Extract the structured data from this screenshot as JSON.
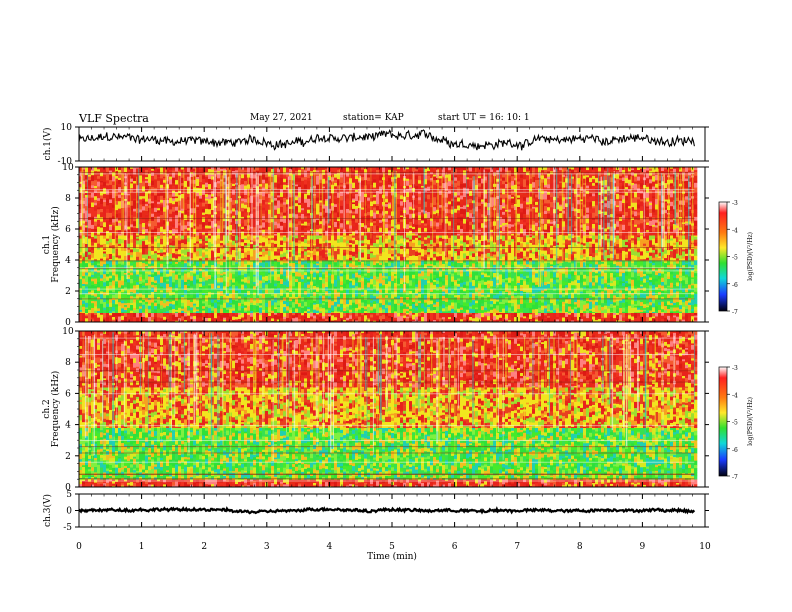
{
  "header": {
    "title": "VLF Spectra",
    "date": "May 27, 2021",
    "station": "station= KAP",
    "start": "start  UT =   16: 10: 1"
  },
  "colors": {
    "spectrogram_high": "#e8231c",
    "spectrogram_mid": "#f2e51e",
    "spectrogram_low": "#2fe03a",
    "waveform": "#000000"
  },
  "chart_data": [
    {
      "type": "line",
      "name": "ch1-waveform",
      "ylabel": "ch.1(V)",
      "ylim": [
        -10,
        10
      ],
      "ytick_labels": [
        "10",
        "-10"
      ],
      "xlim": [
        0,
        10
      ],
      "x_end": 9.83,
      "mean": 2,
      "amplitude": 4,
      "grid": false
    },
    {
      "type": "heatmap",
      "name": "ch1-spectrogram",
      "ylabel": "ch.1\nFrequency  (kHz)",
      "ylim": [
        0,
        10
      ],
      "yticks": [
        0,
        2,
        4,
        6,
        8,
        10
      ],
      "xlim": [
        0,
        10
      ],
      "x_end": 9.83,
      "colorbar": {
        "label": "log(PSD)(V²/Hz)",
        "range": [
          -7,
          -3
        ],
        "ticks": [
          "-3",
          "-4",
          "-5",
          "-6",
          "-7"
        ],
        "colormap": "rainbow (black-blue-cyan-green-yellow-red-white)"
      },
      "bands_kHz": [
        {
          "range": [
            0,
            0.6
          ],
          "level": "high"
        },
        {
          "range": [
            0.6,
            4.0
          ],
          "level": "low"
        },
        {
          "range": [
            4.0,
            5.6
          ],
          "level": "mid-high"
        },
        {
          "range": [
            5.6,
            10
          ],
          "level": "high"
        }
      ]
    },
    {
      "type": "heatmap",
      "name": "ch2-spectrogram",
      "ylabel": "ch.2\nFrequency  (kHz)",
      "ylim": [
        0,
        10
      ],
      "yticks": [
        0,
        2,
        4,
        6,
        8,
        10
      ],
      "xlim": [
        0,
        10
      ],
      "x_end": 9.83,
      "colorbar": {
        "label": "log(PSD)(V²/Hz)",
        "range": [
          -7,
          -3
        ],
        "ticks": [
          "-3",
          "-4",
          "-5",
          "-6",
          "-7"
        ],
        "colormap": "rainbow (black-blue-cyan-green-yellow-red-white)"
      },
      "bands_kHz": [
        {
          "range": [
            0,
            0.5
          ],
          "level": "high"
        },
        {
          "range": [
            0.5,
            3.8
          ],
          "level": "low"
        },
        {
          "range": [
            3.8,
            6.4
          ],
          "level": "mid-high"
        },
        {
          "range": [
            6.4,
            10
          ],
          "level": "high"
        }
      ]
    },
    {
      "type": "line",
      "name": "ch3-waveform",
      "ylabel": "ch.3(V)",
      "ylim": [
        -5,
        5
      ],
      "ytick_labels": [
        "5",
        "0",
        "-5"
      ],
      "xlim": [
        0,
        10
      ],
      "x_end": 9.83,
      "mean": 0,
      "amplitude": 0.6,
      "grid": false
    }
  ],
  "xaxis": {
    "label": "Time  (min)",
    "ticks": [
      0,
      1,
      2,
      3,
      4,
      5,
      6,
      7,
      8,
      9,
      10
    ],
    "range": [
      0,
      10
    ]
  }
}
